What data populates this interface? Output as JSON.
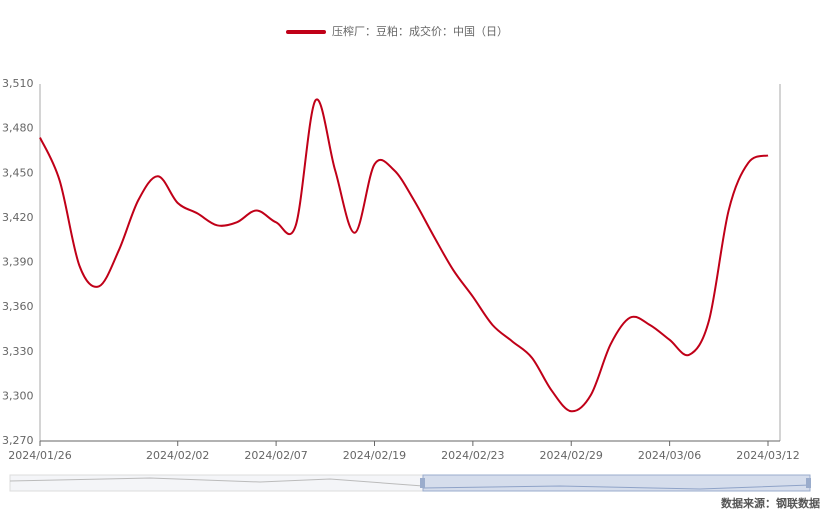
{
  "chart_data": {
    "type": "line",
    "categories": [
      "2024/01/26",
      null,
      null,
      null,
      null,
      null,
      null,
      "2024/02/02",
      null,
      null,
      null,
      null,
      "2024/02/07",
      null,
      null,
      null,
      null,
      "2024/02/19",
      null,
      null,
      null,
      null,
      "2024/02/23",
      null,
      null,
      null,
      null,
      "2024/02/29",
      null,
      null,
      null,
      null,
      "2024/03/06",
      null,
      null,
      null,
      null,
      "2024/03/12"
    ],
    "series": [
      {
        "name": "压榨厂：豆粕：成交价：中国（日）",
        "color": "#c00018",
        "values": [
          3474,
          3445,
          3388,
          3374,
          3398,
          3432,
          3448,
          3430,
          3423,
          3415,
          3417,
          3425,
          3417,
          3415,
          3499,
          3452,
          3410,
          3456,
          3452,
          3432,
          3408,
          3385,
          3367,
          3348,
          3337,
          3326,
          3304,
          3290,
          3301,
          3335,
          3353,
          3348,
          3338,
          3328,
          3351,
          3425,
          3457,
          3462
        ]
      }
    ],
    "ylim": [
      3270,
      3510
    ],
    "yticks": [
      {
        "value": 3270,
        "label": "3,270"
      },
      {
        "value": 3300,
        "label": "3,300"
      },
      {
        "value": 3330,
        "label": "3,330"
      },
      {
        "value": 3360,
        "label": "3,360"
      },
      {
        "value": 3390,
        "label": "3,390"
      },
      {
        "value": 3420,
        "label": "3,420"
      },
      {
        "value": 3450,
        "label": "3,450"
      },
      {
        "value": 3480,
        "label": "3,480"
      },
      {
        "value": 3510,
        "label": "3,510"
      }
    ],
    "grid": false,
    "source": "数据来源：钢联数据"
  }
}
